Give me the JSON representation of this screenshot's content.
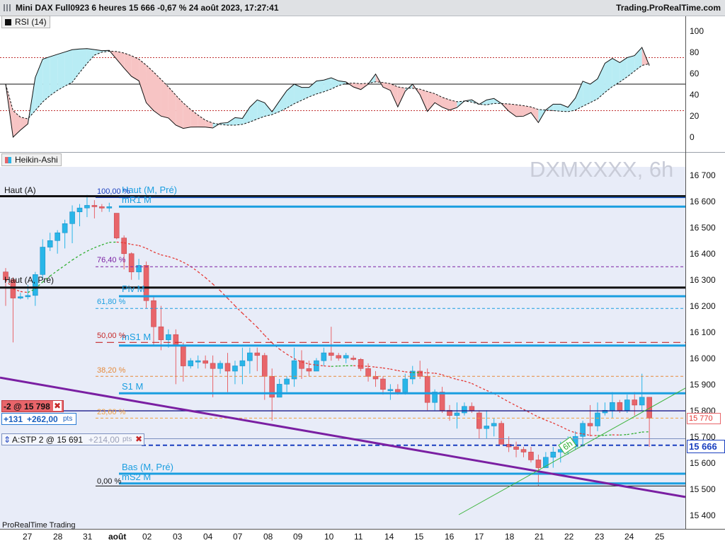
{
  "window": {
    "title": "Mini DAX Full0923 6 heures 15 666 -0,67 % 24 août 2023, 17:27:41",
    "site": "Trading.ProRealTime.com",
    "footer": "ProRealTime Trading"
  },
  "rsi_panel": {
    "label": "RSI (14)",
    "axis": [
      "100",
      "80",
      "60",
      "40",
      "20",
      "0"
    ],
    "levels": [
      100,
      80,
      60,
      40,
      20,
      0
    ]
  },
  "price_panel": {
    "label": "Heikin-Ashi",
    "watermark": "DXMXXXX, 6h",
    "axis": [
      "16 700",
      "16 600",
      "16 500",
      "16 400",
      "16 300",
      "16 200",
      "16 100",
      "16 000",
      "15 900",
      "15 800",
      "15 700",
      "15 600",
      "15 500",
      "15 400"
    ],
    "axis_values": [
      16700,
      16600,
      16500,
      16400,
      16300,
      16200,
      16100,
      16000,
      15900,
      15800,
      15700,
      15600,
      15500,
      15400
    ],
    "current_price": "15 666",
    "marker_price": "15 770",
    "timeframe_badge": "6h"
  },
  "levels": {
    "haut_a": "Haut (A)",
    "haut_a_pre": "Haut (A, Pré)",
    "haut_m_pre": "Haut (M, Pré)",
    "mr1_m": "mR1 M",
    "piv_m": "Piv M",
    "ms1_m": "mS1 M",
    "s1_m": "S1 M",
    "bas_m_pre": "Bas (M, Pré)",
    "ms2_m": "mS2 M"
  },
  "fibonacci": [
    "100,00 %",
    "76,40 %",
    "61,80 %",
    "50,00 %",
    "38,20 %",
    "23,60 %",
    "0,00 %"
  ],
  "position": {
    "qty_price": "-2 @ 15 798",
    "pnl_points": "+131",
    "pnl_value": "+262,00",
    "pnl_unit": "pts",
    "close_symbol": "✖"
  },
  "stop_order": {
    "label": "A:STP  2 @ 15 691",
    "value": "+214,00",
    "unit": "pts",
    "close_symbol": "✖"
  },
  "dates": [
    "27",
    "28",
    "31",
    "août",
    "02",
    "03",
    "04",
    "07",
    "08",
    "09",
    "10",
    "11",
    "14",
    "15",
    "16",
    "17",
    "18",
    "21",
    "22",
    "23",
    "24",
    "25"
  ],
  "colors": {
    "bull": "#29b6e8",
    "bear": "#e8656a",
    "level_blue": "#1a9ee0",
    "trend_purple": "#7a1fa2",
    "ma_red": "#e53935",
    "ma_green": "#2fae2f",
    "background": "#e8ecf8"
  },
  "candles": [
    [
      16330,
      16345,
      16200,
      16300
    ],
    [
      16300,
      16310,
      16060,
      16230
    ],
    [
      16230,
      16250,
      16225,
      16235
    ],
    [
      16235,
      16280,
      16225,
      16240
    ],
    [
      16240,
      16330,
      16200,
      16320
    ],
    [
      16320,
      16455,
      16300,
      16425
    ],
    [
      16425,
      16480,
      16410,
      16450
    ],
    [
      16450,
      16490,
      16400,
      16480
    ],
    [
      16480,
      16530,
      16420,
      16515
    ],
    [
      16515,
      16585,
      16440,
      16560
    ],
    [
      16560,
      16590,
      16505,
      16575
    ],
    [
      16575,
      16625,
      16540,
      16585
    ],
    [
      16585,
      16605,
      16535,
      16580
    ],
    [
      16580,
      16590,
      16560,
      16575
    ],
    [
      16575,
      16595,
      16560,
      16580
    ],
    [
      16555,
      16555,
      16455,
      16460
    ],
    [
      16460,
      16470,
      16340,
      16400
    ],
    [
      16400,
      16405,
      16300,
      16330
    ],
    [
      16330,
      16380,
      16300,
      16355
    ],
    [
      16355,
      16370,
      16190,
      16220
    ],
    [
      16220,
      16240,
      16050,
      16120
    ],
    [
      16120,
      16200,
      16030,
      16070
    ],
    [
      16070,
      16110,
      16040,
      16090
    ],
    [
      16090,
      16110,
      15900,
      16050
    ],
    [
      16050,
      16060,
      15910,
      15970
    ],
    [
      15970,
      16000,
      15960,
      15990
    ],
    [
      15990,
      16010,
      15960,
      15990
    ],
    [
      15990,
      16010,
      15960,
      15980
    ],
    [
      15980,
      16010,
      15850,
      15960
    ],
    [
      15960,
      15990,
      15940,
      15980
    ],
    [
      15980,
      16020,
      15870,
      15950
    ],
    [
      15950,
      15990,
      15900,
      15970
    ],
    [
      15970,
      16040,
      15900,
      15990
    ],
    [
      15990,
      16040,
      15940,
      16020
    ],
    [
      16020,
      16040,
      15950,
      16010
    ],
    [
      16010,
      16020,
      15840,
      15930
    ],
    [
      15930,
      15960,
      15760,
      15850
    ],
    [
      15850,
      15920,
      15850,
      15900
    ],
    [
      15900,
      15930,
      15870,
      15920
    ],
    [
      15920,
      16040,
      15890,
      15990
    ],
    [
      15990,
      16030,
      15920,
      15960
    ],
    [
      15960,
      15990,
      15930,
      15950
    ],
    [
      15950,
      16000,
      15960,
      15990
    ],
    [
      15990,
      16040,
      15970,
      16020
    ],
    [
      16020,
      16120,
      15990,
      16010
    ],
    [
      16010,
      16020,
      15990,
      16000
    ],
    [
      16000,
      16020,
      15980,
      16010
    ],
    [
      16000,
      16010,
      15990,
      15995
    ],
    [
      15995,
      16000,
      15950,
      15960
    ],
    [
      15960,
      15980,
      15910,
      15930
    ],
    [
      15930,
      15950,
      15890,
      15920
    ],
    [
      15920,
      15930,
      15860,
      15880
    ],
    [
      15880,
      15900,
      15840,
      15880
    ],
    [
      15880,
      15900,
      15860,
      15870
    ],
    [
      15870,
      15940,
      15860,
      15920
    ],
    [
      15920,
      15970,
      15900,
      15950
    ],
    [
      15950,
      15990,
      15920,
      15930
    ],
    [
      15930,
      15960,
      15800,
      15830
    ],
    [
      15830,
      15880,
      15800,
      15870
    ],
    [
      15870,
      15890,
      15790,
      15800
    ],
    [
      15800,
      15820,
      15760,
      15780
    ],
    [
      15780,
      15830,
      15730,
      15790
    ],
    [
      15790,
      15830,
      15780,
      15815
    ],
    [
      15815,
      15830,
      15790,
      15800
    ],
    [
      15790,
      15800,
      15690,
      15730
    ],
    [
      15730,
      15800,
      15690,
      15740
    ],
    [
      15740,
      15770,
      15700,
      15750
    ],
    [
      15750,
      15760,
      15670,
      15670
    ],
    [
      15670,
      15700,
      15640,
      15660
    ],
    [
      15660,
      15680,
      15620,
      15650
    ],
    [
      15650,
      15660,
      15620,
      15640
    ],
    [
      15640,
      15660,
      15600,
      15610
    ],
    [
      15610,
      15630,
      15510,
      15580
    ],
    [
      15580,
      15640,
      15580,
      15620
    ],
    [
      15620,
      15660,
      15580,
      15640
    ],
    [
      15640,
      15680,
      15600,
      15650
    ],
    [
      15650,
      15700,
      15630,
      15660
    ],
    [
      15660,
      15720,
      15650,
      15700
    ],
    [
      15700,
      15760,
      15660,
      15750
    ],
    [
      15750,
      15820,
      15700,
      15740
    ],
    [
      15740,
      15830,
      15720,
      15790
    ],
    [
      15790,
      15830,
      15780,
      15800
    ],
    [
      15800,
      15870,
      15770,
      15830
    ],
    [
      15830,
      15840,
      15790,
      15800
    ],
    [
      15800,
      15860,
      15790,
      15840
    ],
    [
      15840,
      15870,
      15780,
      15820
    ],
    [
      15820,
      15940,
      15800,
      15850
    ],
    [
      15850,
      15840,
      15660,
      15770
    ]
  ]
}
